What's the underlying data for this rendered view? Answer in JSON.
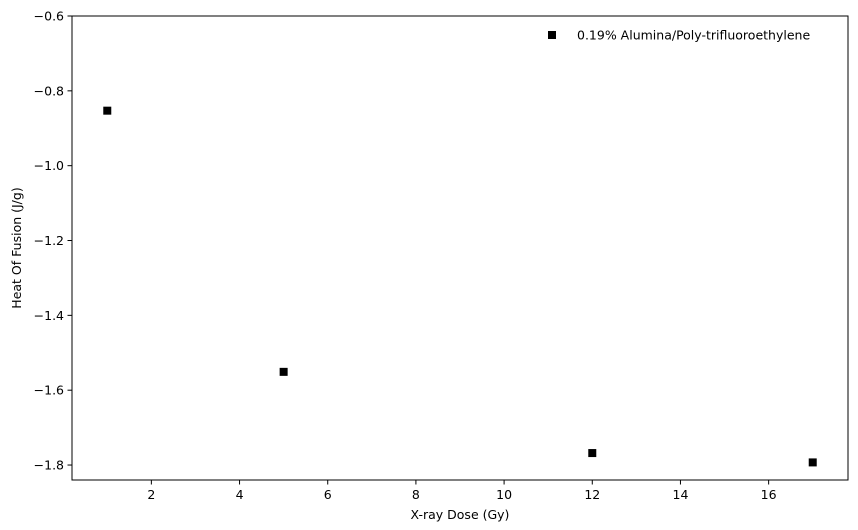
{
  "chart_data": {
    "type": "scatter",
    "xlabel": "X-ray Dose (Gy)",
    "ylabel": "Heat Of Fusion (J/g)",
    "xlim": [
      0.2,
      17.8
    ],
    "ylim": [
      -1.84,
      -0.6
    ],
    "xticks": [
      2,
      4,
      6,
      8,
      10,
      12,
      14,
      16
    ],
    "yticks": [
      -1.8,
      -1.6,
      -1.4,
      -1.2,
      -1.0,
      -0.8,
      -0.6
    ],
    "xtick_labels": [
      "2",
      "4",
      "6",
      "8",
      "10",
      "12",
      "14",
      "16"
    ],
    "ytick_labels": [
      "−1.8",
      "−1.6",
      "−1.4",
      "−1.2",
      "−1.0",
      "−0.8",
      "−0.6"
    ],
    "grid": false,
    "legend_position": "top-right",
    "series": [
      {
        "name": "0.19% Alumina/Poly-trifluoroethylene",
        "marker": "square",
        "color": "#000000",
        "x": [
          1,
          5,
          12,
          17
        ],
        "y": [
          -0.853,
          -1.551,
          -1.768,
          -1.793
        ]
      }
    ]
  }
}
